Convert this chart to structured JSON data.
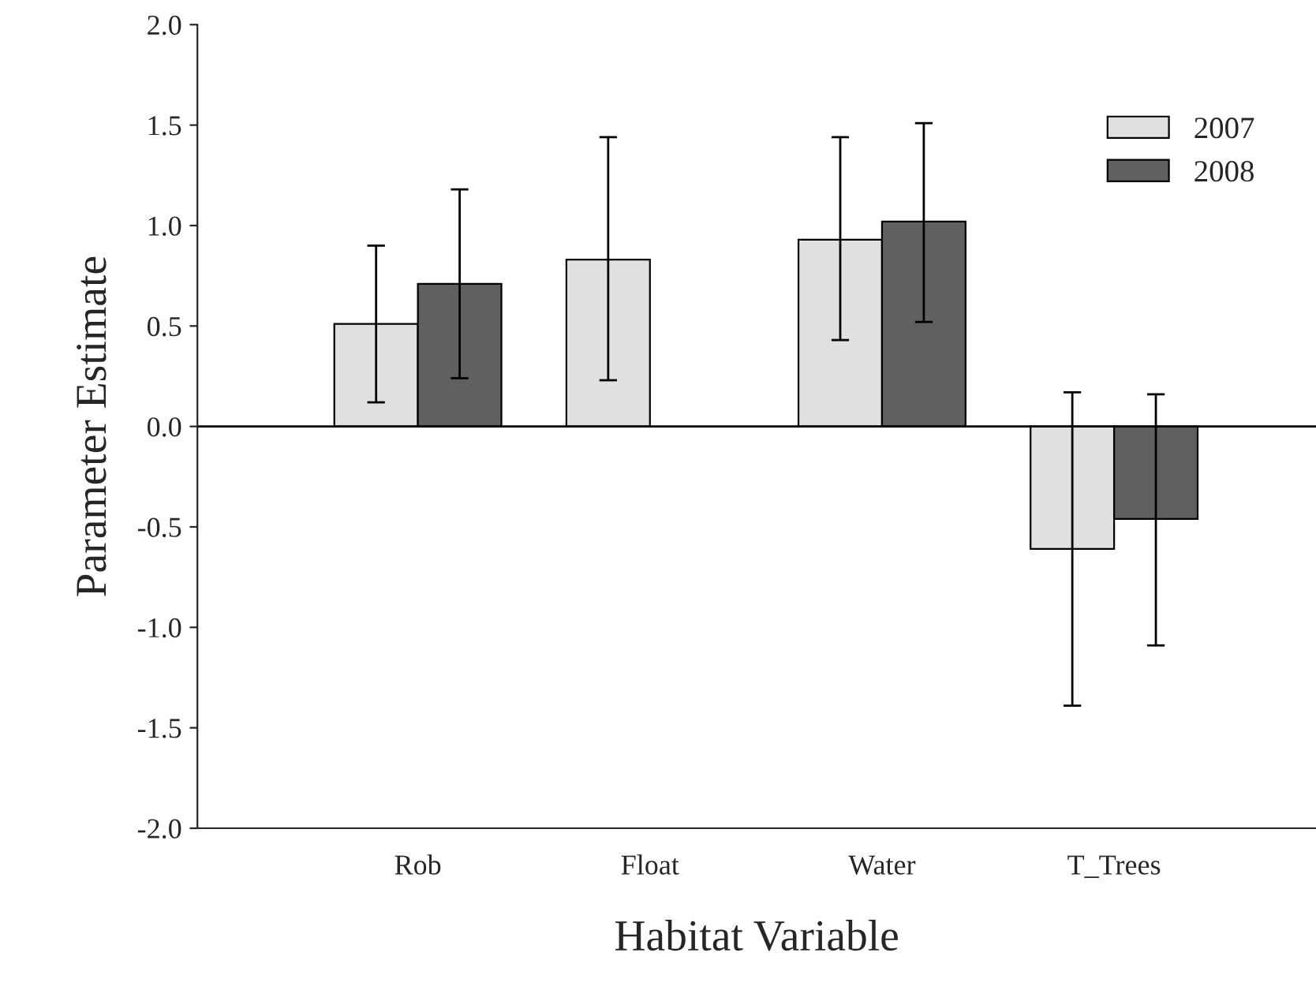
{
  "chart_data": {
    "type": "bar",
    "xlabel": "Habitat Variable",
    "ylabel": "Parameter Estimate",
    "categories": [
      "Rob",
      "Float",
      "Water",
      "T_Trees"
    ],
    "series": [
      {
        "name": "2007",
        "color": "#e0e0e0",
        "values": [
          0.51,
          0.83,
          0.93,
          -0.61
        ],
        "errors": [
          [
            0.12,
            0.9
          ],
          [
            0.23,
            1.44
          ],
          [
            0.43,
            1.44
          ],
          [
            -1.39,
            0.17
          ]
        ]
      },
      {
        "name": "2008",
        "color": "#606060",
        "values": [
          0.71,
          null,
          1.02,
          -0.46
        ],
        "errors": [
          [
            0.24,
            1.18
          ],
          null,
          [
            0.52,
            1.51
          ],
          [
            -1.09,
            0.16
          ]
        ]
      }
    ],
    "ylim": [
      -2.0,
      2.0
    ],
    "yticks": [
      {
        "value": -2.0,
        "label": "-2.0"
      },
      {
        "value": -1.5,
        "label": "-1.5"
      },
      {
        "value": -1.0,
        "label": "-1.0"
      },
      {
        "value": -0.5,
        "label": "-0.5"
      },
      {
        "value": 0,
        "label": "0.0"
      },
      {
        "value": 0.5,
        "label": "0.5"
      },
      {
        "value": 1.0,
        "label": "1.0"
      },
      {
        "value": 1.5,
        "label": "1.5"
      },
      {
        "value": 2.0,
        "label": "2.0"
      }
    ],
    "ref_lines": [
      {
        "axis": "y",
        "value": 0,
        "color": "#000000"
      }
    ],
    "legend": "top right",
    "grid": false
  }
}
